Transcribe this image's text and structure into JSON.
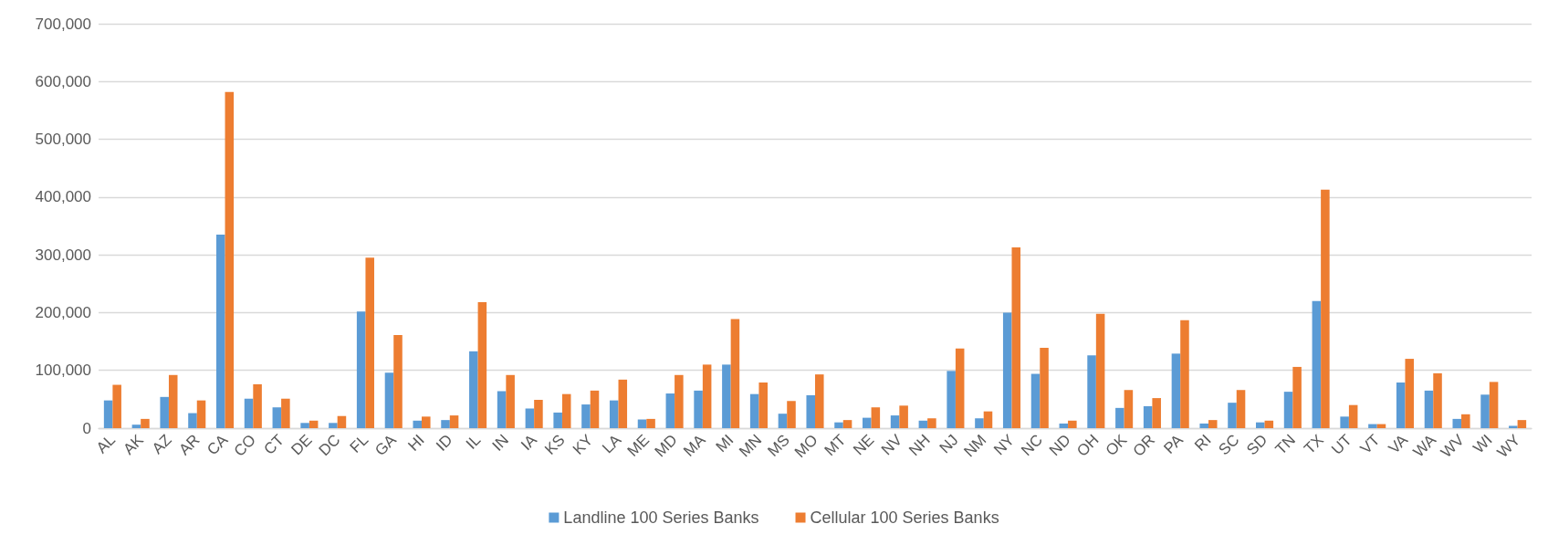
{
  "chart_data": {
    "type": "bar",
    "categories": [
      "AL",
      "AK",
      "AZ",
      "AR",
      "CA",
      "CO",
      "CT",
      "DE",
      "DC",
      "FL",
      "GA",
      "HI",
      "ID",
      "IL",
      "IN",
      "IA",
      "KS",
      "KY",
      "LA",
      "ME",
      "MD",
      "MA",
      "MI",
      "MN",
      "MS",
      "MO",
      "MT",
      "NE",
      "NV",
      "NH",
      "NJ",
      "NM",
      "NY",
      "NC",
      "ND",
      "OH",
      "OK",
      "OR",
      "PA",
      "RI",
      "SC",
      "SD",
      "TN",
      "TX",
      "UT",
      "VT",
      "VA",
      "WA",
      "WV",
      "WI",
      "WY"
    ],
    "series": [
      {
        "name": "Landline 100 Series Banks",
        "color": "#5b9bd5",
        "values": [
          48000,
          6000,
          54000,
          26000,
          335000,
          51000,
          36000,
          9000,
          9000,
          202000,
          96000,
          13000,
          14000,
          133000,
          64000,
          34000,
          27000,
          41000,
          48000,
          15000,
          60000,
          65000,
          110000,
          59000,
          25000,
          57000,
          10000,
          18000,
          22000,
          13000,
          99000,
          17000,
          200000,
          94000,
          8000,
          126000,
          35000,
          38000,
          129000,
          8000,
          44000,
          10000,
          63000,
          220000,
          20000,
          7000,
          79000,
          65000,
          16000,
          58000,
          4000
        ]
      },
      {
        "name": "Cellular 100 Series Banks",
        "color": "#ed7d31",
        "values": [
          75000,
          16000,
          92000,
          48000,
          582000,
          76000,
          51000,
          13000,
          21000,
          295000,
          161000,
          20000,
          22000,
          218000,
          92000,
          49000,
          59000,
          65000,
          84000,
          16000,
          92000,
          110000,
          189000,
          79000,
          47000,
          93000,
          14000,
          36000,
          39000,
          17000,
          138000,
          29000,
          313000,
          139000,
          13000,
          198000,
          66000,
          52000,
          187000,
          14000,
          66000,
          13000,
          106000,
          413000,
          40000,
          7000,
          120000,
          95000,
          24000,
          80000,
          14000
        ]
      }
    ],
    "ylim": [
      0,
      700000
    ],
    "yticks": [
      {
        "value": 0,
        "label": "0"
      },
      {
        "value": 100000,
        "label": "100,000"
      },
      {
        "value": 200000,
        "label": "200,000"
      },
      {
        "value": 300000,
        "label": "300,000"
      },
      {
        "value": 400000,
        "label": "400,000"
      },
      {
        "value": 500000,
        "label": "500,000"
      },
      {
        "value": 600000,
        "label": "600,000"
      },
      {
        "value": 700000,
        "label": "700,000"
      }
    ],
    "grid": "y",
    "legend": "bottom"
  }
}
